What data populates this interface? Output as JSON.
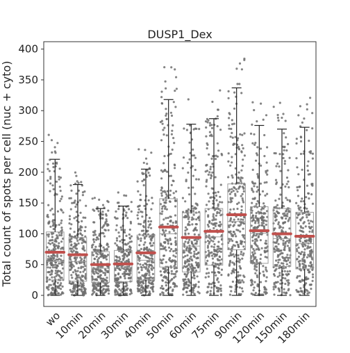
{
  "chart_data": {
    "type": "box",
    "title": "DUSP1_Dex",
    "xlabel": "",
    "ylabel": "Total count of spots per cell (nuc + cyto)",
    "ylim": [
      -18,
      412
    ],
    "yticks": [
      0,
      50,
      100,
      150,
      200,
      250,
      300,
      350,
      400
    ],
    "categories": [
      "wo",
      "10min",
      "20min",
      "30min",
      "40min",
      "50min",
      "60min",
      "75min",
      "90min",
      "120min",
      "150min",
      "180min"
    ],
    "series": [
      {
        "boxes": [
          {
            "q1": 25,
            "median": 55,
            "q3": 103,
            "whisker_low": 0,
            "whisker_high": 221,
            "mean": 70
          },
          {
            "q1": 23,
            "median": 55,
            "q3": 94,
            "whisker_low": 0,
            "whisker_high": 180,
            "mean": 66
          },
          {
            "q1": 21,
            "median": 44,
            "q3": 71,
            "whisker_low": 0,
            "whisker_high": 141,
            "mean": 50
          },
          {
            "q1": 22,
            "median": 45,
            "q3": 73,
            "whisker_low": 0,
            "whisker_high": 145,
            "mean": 51
          },
          {
            "q1": 25,
            "median": 57,
            "q3": 98,
            "whisker_low": 0,
            "whisker_high": 205,
            "mean": 69
          },
          {
            "q1": 46,
            "median": 100,
            "q3": 157,
            "whisker_low": 0,
            "whisker_high": 318,
            "mean": 111
          },
          {
            "q1": 38,
            "median": 80,
            "q3": 134,
            "whisker_low": 0,
            "whisker_high": 278,
            "mean": 94
          },
          {
            "q1": 49,
            "median": 95,
            "q3": 141,
            "whisker_low": 0,
            "whisker_high": 287,
            "mean": 104
          },
          {
            "q1": 74,
            "median": 120,
            "q3": 181,
            "whisker_low": 0,
            "whisker_high": 337,
            "mean": 131
          },
          {
            "q1": 52,
            "median": 101,
            "q3": 144,
            "whisker_low": 0,
            "whisker_high": 276,
            "mean": 105
          },
          {
            "q1": 47,
            "median": 92,
            "q3": 141,
            "whisker_low": 0,
            "whisker_high": 270,
            "mean": 100
          },
          {
            "q1": 43,
            "median": 84,
            "q3": 135,
            "whisker_low": 0,
            "whisker_high": 273,
            "mean": 96
          }
        ]
      }
    ],
    "box_color": "#9a9a9a",
    "point_color": "#6f6f6f",
    "mean_color": "#c0504d",
    "grid": false,
    "legend": "none"
  }
}
